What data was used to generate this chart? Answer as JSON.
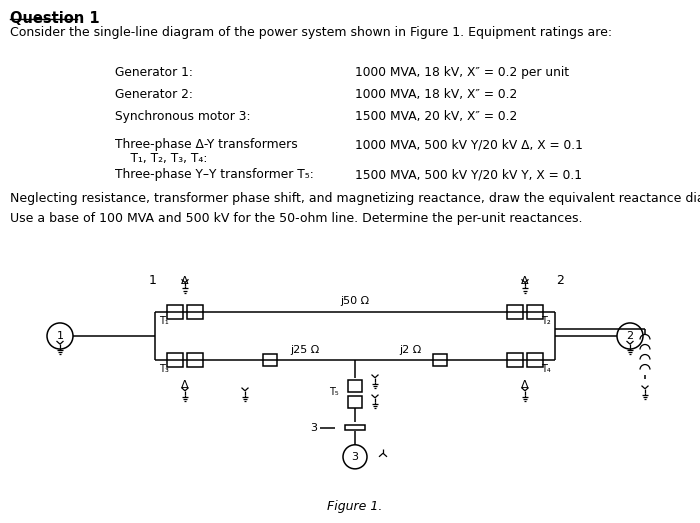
{
  "title": "Question 1",
  "intro": "Consider the single-line diagram of the power system shown in Figure 1. Equipment ratings are:",
  "eq1_label": "Generator 1:",
  "eq1_value": "1000 MVA, 18 kV, X″ = 0.2 per unit",
  "eq2_label": "Generator 2:",
  "eq2_value": "1000 MVA, 18 kV, X″ = 0.2",
  "eq3_label": "Synchronous motor 3:",
  "eq3_value": "1500 MVA, 20 kV, X″ = 0.2",
  "eq4_label": "Three-phase Δ-Y transformers",
  "eq4_label2": "    T₁, T₂, T₃, T₄:",
  "eq4_value": "1000 MVA, 500 kV Y/20 kV Δ, X = 0.1",
  "eq5_label": "Three-phase Y–Y transformer T₅:",
  "eq5_value": "1500 MVA, 500 kV Y/20 kV Y, X = 0.1",
  "neglect_text": "Neglecting resistance, transformer phase shift, and magnetizing reactance, draw the equivalent reactance diagram.",
  "base_text": "Use a base of 100 MVA and 500 kV for the 50-ohm line. Determine the per-unit reactances.",
  "figure_label": "Figure 1.",
  "label1": "1",
  "label2": "2",
  "label3": "3",
  "labelT1": "T₁",
  "labelT2": "T₂",
  "labelT3": "T₃",
  "labelT4": "T₄",
  "labelT5": "T₅",
  "j50": "j50 Ω",
  "j25": "j25 Ω",
  "j2": "j2 Ω",
  "delta": "Δ",
  "bg_color": "#ffffff",
  "text_color": "#000000"
}
